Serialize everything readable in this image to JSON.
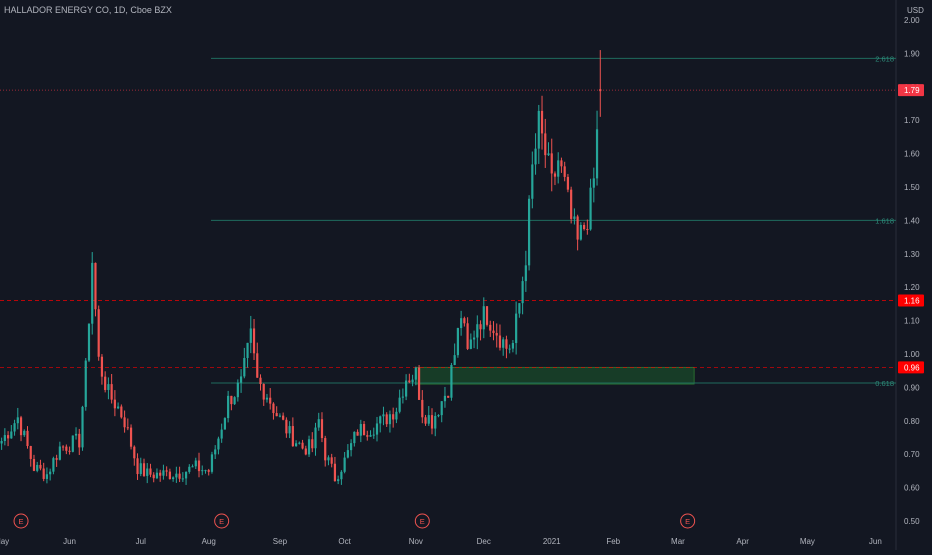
{
  "chart_data": {
    "type": "candlestick",
    "title": "HALLADOR ENERGY CO, 1D, Cboe BZX",
    "currency": "USD",
    "y_range": [
      0.5,
      2.0
    ],
    "y_ticks": [
      0.5,
      0.6,
      0.7,
      0.8,
      0.9,
      1.0,
      1.1,
      1.2,
      1.3,
      1.4,
      1.5,
      1.6,
      1.7,
      1.8,
      1.9,
      2.0
    ],
    "y_tick_labels": [
      "0.50",
      "0.60",
      "0.70",
      "0.80",
      "0.90",
      "1.00",
      "1.10",
      "1.20",
      "1.30",
      "1.40",
      "1.50",
      "1.60",
      "1.70",
      "1.80",
      "1.90",
      "2.00"
    ],
    "x_ticks": [
      {
        "label": "May",
        "index": 0
      },
      {
        "label": "Jun",
        "index": 21
      },
      {
        "label": "Jul",
        "index": 43
      },
      {
        "label": "Aug",
        "index": 64
      },
      {
        "label": "Sep",
        "index": 86
      },
      {
        "label": "Oct",
        "index": 106
      },
      {
        "label": "Nov",
        "index": 128
      },
      {
        "label": "Dec",
        "index": 149
      },
      {
        "label": "2021",
        "index": 170
      },
      {
        "label": "Feb",
        "index": 189
      },
      {
        "label": "Mar",
        "index": 209
      },
      {
        "label": "Apr",
        "index": 229
      },
      {
        "label": "May",
        "index": 249
      },
      {
        "label": "Jun",
        "index": 270
      }
    ],
    "earnings_markers": [
      {
        "label": "E",
        "index": 6
      },
      {
        "label": "E",
        "index": 68
      },
      {
        "label": "E",
        "index": 130
      },
      {
        "label": "E",
        "index": 212
      }
    ],
    "keypoints": [
      [
        0,
        0.74
      ],
      [
        5,
        0.81
      ],
      [
        10,
        0.66
      ],
      [
        14,
        0.64
      ],
      [
        18,
        0.72
      ],
      [
        24,
        0.74
      ],
      [
        26,
        0.95
      ],
      [
        28,
        1.28
      ],
      [
        30,
        0.98
      ],
      [
        33,
        0.88
      ],
      [
        36,
        0.84
      ],
      [
        38,
        0.8
      ],
      [
        42,
        0.66
      ],
      [
        45,
        0.64
      ],
      [
        50,
        0.64
      ],
      [
        55,
        0.645
      ],
      [
        60,
        0.66
      ],
      [
        64,
        0.65
      ],
      [
        67,
        0.75
      ],
      [
        70,
        0.86
      ],
      [
        74,
        0.91
      ],
      [
        77,
        1.05
      ],
      [
        79,
        0.92
      ],
      [
        82,
        0.88
      ],
      [
        85,
        0.82
      ],
      [
        89,
        0.76
      ],
      [
        93,
        0.72
      ],
      [
        96,
        0.72
      ],
      [
        98,
        0.8
      ],
      [
        100,
        0.7
      ],
      [
        103,
        0.63
      ],
      [
        106,
        0.68
      ],
      [
        110,
        0.77
      ],
      [
        114,
        0.78
      ],
      [
        118,
        0.8
      ],
      [
        122,
        0.84
      ],
      [
        125,
        0.93
      ],
      [
        128,
        0.94
      ],
      [
        130,
        0.83
      ],
      [
        133,
        0.8
      ],
      [
        136,
        0.86
      ],
      [
        138,
        0.9
      ],
      [
        140,
        1.0
      ],
      [
        142,
        1.12
      ],
      [
        144,
        1.0
      ],
      [
        147,
        1.1
      ],
      [
        150,
        1.12
      ],
      [
        153,
        1.07
      ],
      [
        156,
        1.02
      ],
      [
        158,
        1.03
      ],
      [
        160,
        1.15
      ],
      [
        162,
        1.3
      ],
      [
        164,
        1.55
      ],
      [
        166,
        1.68
      ],
      [
        168,
        1.6
      ],
      [
        170,
        1.5
      ],
      [
        172,
        1.58
      ],
      [
        174,
        1.5
      ],
      [
        176,
        1.4
      ],
      [
        178,
        1.33
      ],
      [
        180,
        1.38
      ],
      [
        182,
        1.45
      ],
      [
        183,
        1.52
      ],
      [
        185,
        1.79
      ]
    ],
    "last_candle": {
      "index": 185,
      "open": 1.79,
      "high": 1.91,
      "low": 1.71,
      "close": 1.79
    },
    "fib_levels": [
      {
        "label": "2.618",
        "value": 1.885
      },
      {
        "label": "1.618",
        "value": 1.4
      },
      {
        "label": "0.618",
        "value": 0.913
      }
    ],
    "price_lines": [
      {
        "value": 1.79,
        "label": "1.79",
        "color": "#f23645",
        "style": "dotted"
      },
      {
        "value": 1.16,
        "label": "1.16",
        "color": "#ff0000",
        "style": "dashed"
      },
      {
        "value": 0.96,
        "label": "0.96",
        "color": "#ff0000",
        "style": "dashed"
      }
    ],
    "support_zone": {
      "from_index": 128,
      "to_index": 214,
      "low": 0.91,
      "high": 0.96
    },
    "colors": {
      "up": "#26a69a",
      "down": "#ef5350",
      "fib": "#1f6b5e",
      "fib_text": "#2e8b7a",
      "zone_fill": "#1a4a2a",
      "zone_stroke": "#2e7d32",
      "background": "#131722",
      "axis_text": "#b2b5be"
    }
  }
}
